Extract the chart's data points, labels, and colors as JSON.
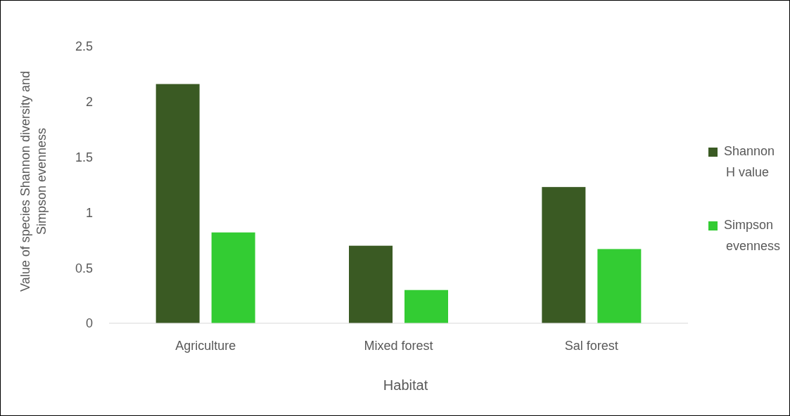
{
  "chart_data": {
    "type": "bar",
    "xlabel": "Habitat",
    "ylabel": "Value of species Shannon diversity and Simpson evenness",
    "categories": [
      "Agriculture",
      "Mixed forest",
      "Sal forest"
    ],
    "series": [
      {
        "name": "Shannon H value",
        "color": "#3a5a23",
        "values": [
          2.16,
          0.7,
          1.23
        ]
      },
      {
        "name": "Simpson evenness",
        "color": "#33cc33",
        "values": [
          0.82,
          0.3,
          0.67
        ]
      }
    ],
    "ylim": [
      0,
      2.5
    ],
    "yticks": [
      0,
      0.5,
      1,
      1.5,
      2,
      2.5
    ],
    "grid": false,
    "legend": "right"
  }
}
